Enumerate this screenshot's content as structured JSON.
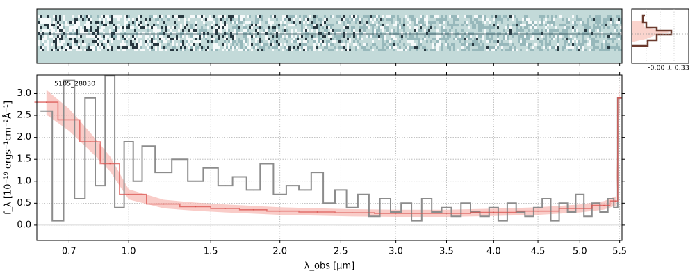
{
  "chart_data": {
    "type": "line",
    "object_label": "5105_28030",
    "xlabel": "λ_obs [μm]",
    "ylabel": "f_λ [10⁻¹⁹ ergs⁻¹cm⁻²Å⁻¹]",
    "x_scale": "sqrt",
    "xlim": [
      0.56,
      5.53
    ],
    "ylim": [
      -0.35,
      3.42
    ],
    "grid": true,
    "x_ticks": [
      {
        "value": 0.7,
        "label": "0.7"
      },
      {
        "value": 1.0,
        "label": "1.0"
      },
      {
        "value": 1.5,
        "label": "1.5"
      },
      {
        "value": 2.0,
        "label": "2.0"
      },
      {
        "value": 2.5,
        "label": "2.5"
      },
      {
        "value": 3.0,
        "label": "3.0"
      },
      {
        "value": 3.5,
        "label": "3.5"
      },
      {
        "value": 4.0,
        "label": "4.0"
      },
      {
        "value": 4.5,
        "label": "4.5"
      },
      {
        "value": 5.0,
        "label": "5.0"
      },
      {
        "value": 5.5,
        "label": "5.5"
      }
    ],
    "y_ticks": [
      {
        "value": 0.0,
        "label": "0.0"
      },
      {
        "value": 0.5,
        "label": "0.5"
      },
      {
        "value": 1.0,
        "label": "1.0"
      },
      {
        "value": 1.5,
        "label": "1.5"
      },
      {
        "value": 2.0,
        "label": "2.0"
      },
      {
        "value": 2.5,
        "label": "2.5"
      },
      {
        "value": 3.0,
        "label": "3.0"
      }
    ],
    "series": [
      {
        "role": "spectrum",
        "color": "#8c8c8c",
        "x": [
          0.6,
          0.65,
          0.7,
          0.75,
          0.8,
          0.85,
          0.9,
          0.95,
          1.0,
          1.05,
          1.1,
          1.2,
          1.3,
          1.4,
          1.5,
          1.6,
          1.7,
          1.8,
          1.9,
          2.0,
          2.1,
          2.2,
          2.3,
          2.4,
          2.5,
          2.6,
          2.7,
          2.8,
          2.9,
          3.0,
          3.1,
          3.2,
          3.3,
          3.4,
          3.5,
          3.6,
          3.7,
          3.8,
          3.9,
          4.0,
          4.1,
          4.2,
          4.3,
          4.4,
          4.5,
          4.6,
          4.7,
          4.8,
          4.9,
          5.0,
          5.1,
          5.2,
          5.3,
          5.4,
          5.45,
          5.5
        ],
        "y": [
          2.6,
          0.1,
          3.3,
          0.6,
          2.9,
          0.9,
          3.4,
          0.4,
          1.9,
          1.0,
          1.8,
          1.2,
          1.5,
          1.0,
          1.3,
          0.9,
          1.1,
          0.8,
          1.4,
          0.7,
          0.9,
          0.8,
          1.2,
          0.5,
          0.8,
          0.4,
          0.7,
          0.2,
          0.6,
          0.3,
          0.5,
          0.1,
          0.6,
          0.3,
          0.4,
          0.2,
          0.5,
          0.3,
          0.2,
          0.4,
          0.1,
          0.5,
          0.3,
          0.2,
          0.4,
          0.6,
          0.1,
          0.5,
          0.3,
          0.7,
          0.2,
          0.5,
          0.3,
          0.6,
          0.4,
          2.9
        ]
      },
      {
        "role": "model",
        "color": "#d9534f",
        "x": [
          0.6,
          0.7,
          0.8,
          0.9,
          1.0,
          1.2,
          1.4,
          1.6,
          1.8,
          2.0,
          2.3,
          2.6,
          3.0,
          3.5,
          4.0,
          4.5,
          5.0,
          5.3,
          5.45,
          5.5
        ],
        "y": [
          2.8,
          2.4,
          1.9,
          1.4,
          0.7,
          0.48,
          0.42,
          0.38,
          0.35,
          0.32,
          0.3,
          0.28,
          0.27,
          0.27,
          0.29,
          0.32,
          0.38,
          0.45,
          0.55,
          2.9
        ]
      }
    ]
  },
  "thumbnail": {
    "noise_label": "-0.00 ± 0.33"
  },
  "colors": {
    "spectrum": "#8c8c8c",
    "model": "#d9534f",
    "model_band": "#f6b6b0",
    "image_bg": "#c3dad9",
    "histogram_line": "#6b3a2e"
  }
}
